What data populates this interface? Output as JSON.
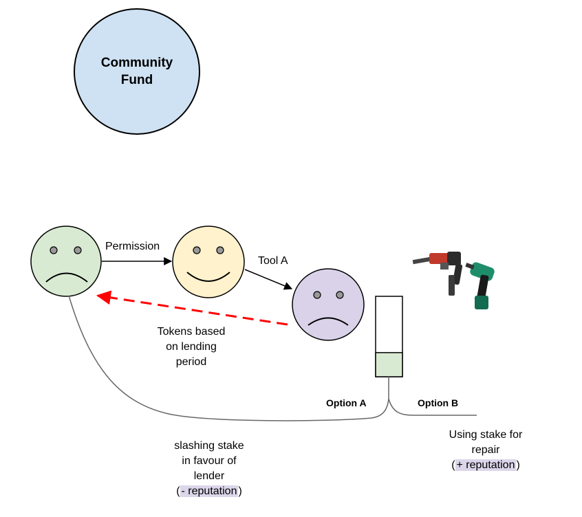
{
  "community_fund": {
    "line1": "Community",
    "line2": "Fund"
  },
  "edges": {
    "permission": "Permission",
    "tool": "Tool A",
    "tokens": [
      "Tokens based",
      "on lending",
      "period"
    ]
  },
  "options": {
    "a": "Option A",
    "b": "Option B"
  },
  "outcome_a": {
    "lines": [
      "slashing stake",
      "in favour of",
      "lender"
    ],
    "open": "(",
    "badge": "- reputation",
    "close": ")"
  },
  "outcome_b": {
    "lines": [
      "Using stake for",
      "repair"
    ],
    "open": "(",
    "badge": "+ reputation",
    "close": ")"
  },
  "stake": {
    "fill_fraction": 0.3
  },
  "icons": [
    "hammer-drill-icon",
    "cordless-drill-icon"
  ],
  "colors": {
    "fund": "#cfe2f3",
    "lender": "#d9ead3",
    "approver": "#fff2cc",
    "borrower": "#d9d2e9",
    "stake_fill": "#d9ead3",
    "dashed_arrow": "#ff0000",
    "badge_bg": "#dcd6ea"
  }
}
